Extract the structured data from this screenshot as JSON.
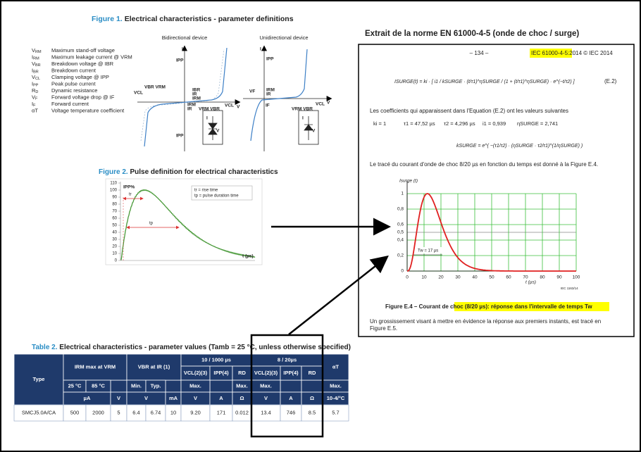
{
  "figure1": {
    "title_label": "Figure 1.",
    "title_text": "Electrical characteristics - parameter definitions",
    "parameters": [
      {
        "symbol": "V",
        "sub": "RM",
        "description": "Maximum stand-off voltage"
      },
      {
        "symbol": "I",
        "sub": "RM",
        "description": "Maximum leakage current @ VRM"
      },
      {
        "symbol": "V",
        "sub": "BR",
        "description": "Breakdown voltage @ IBR"
      },
      {
        "symbol": "I",
        "sub": "BR",
        "description": "Breakdown current"
      },
      {
        "symbol": "V",
        "sub": "CL",
        "description": "Clamping voltage @ IPP"
      },
      {
        "symbol": "I",
        "sub": "PP",
        "description": "Peak pulse current"
      },
      {
        "symbol": "R",
        "sub": "D",
        "description": "Dynamic resistance"
      },
      {
        "symbol": "V",
        "sub": "F",
        "description": "Forward voltage drop @ IF"
      },
      {
        "symbol": "I",
        "sub": "F",
        "description": "Forward current"
      },
      {
        "symbol": "αT",
        "sub": "",
        "description": "Voltage temperature coefficient"
      }
    ],
    "bidirectional": {
      "title": "Bidirectional device",
      "labels": [
        "I",
        "IPP",
        "VCL",
        "VBR VRM",
        "IBR",
        "IR",
        "IRM",
        "IRM",
        "IR",
        "VRM VBR",
        "VCL",
        "IPP",
        "V",
        "I",
        "V"
      ]
    },
    "unidirectional": {
      "title": "Unidirectional device",
      "labels": [
        "I",
        "IPP",
        "VF",
        "IRM",
        "IR",
        "IF",
        "VRM VBR",
        "VCL",
        "V",
        "I",
        "V"
      ]
    }
  },
  "figure2": {
    "title_label": "Figure 2.",
    "title_text": "Pulse definition for electrical characteristics",
    "y_label": "IPP%",
    "yticks": [
      "0",
      "10",
      "20",
      "30",
      "40",
      "50",
      "60",
      "70",
      "80",
      "90",
      "100",
      "110"
    ],
    "legend": [
      "tr = rise time",
      "tp = pulse duration time"
    ],
    "tr_label": "tr",
    "tp_label": "tp",
    "x_label": "t (µs)"
  },
  "standard": {
    "header": "Extrait de la norme EN 61000-4-5 (onde de choc / surge)",
    "page_number": "– 134 –",
    "ref_highlight": "IEC 61000-4-5:",
    "ref_rest": "2014 © IEC 2014",
    "equation": "ISURGE(t) = ki · [ i1 / kSURGE · (t/τ1)^ηSURGE / (1 + (t/τ1)^ηSURGE) · e^(−t/τ2) ]",
    "equation_number": "(E.2)",
    "paragraph1": "Les coefficients qui apparaissent dans l'Equation (E.2) ont les valeurs suivantes",
    "coefficients": [
      "ki = 1",
      "τ1 = 47,52 µs",
      "τ2 = 4,296 µs",
      "i1 = 0,939",
      "ηSURGE = 2,741"
    ],
    "k_equation": "kSURGE = e^( −(τ1/τ2) · (ηSURGE · τ2/τ1)^(1/ηSURGE) )",
    "paragraph2": "Le tracé du courant d'onde de choc 8/20 µs en fonction du temps est donné à la Figure E.4.",
    "chart": {
      "y_label": "Isurge (t)",
      "yticks": [
        "0",
        "0,2",
        "0,4",
        "0,5",
        "0,6",
        "0,8",
        "1"
      ],
      "xticks": [
        "0",
        "10",
        "20",
        "30",
        "40",
        "50",
        "60",
        "70",
        "80",
        "90",
        "100"
      ],
      "x_label": "t (µs)",
      "tw_label": "Tw = 17 µs",
      "source": "IEC 1163/14"
    },
    "caption_prefix": "Figure E.4 –",
    "caption_highlight": "Courant de choc (8/20 µs): réponse dans l'intervalle de temps Tw",
    "paragraph3": [
      "Un grossissement visant à mettre en évidence la réponse aux premiers instants, est tracé en",
      "Figure E.5."
    ]
  },
  "table": {
    "title_label": "Table 2.",
    "title_text": "Electrical characteristics - parameter values (Tamb = 25 °C, unless otherwise specified)",
    "header": [
      "Type",
      "IRM max at VRM",
      "VBR at IR (1)",
      "10 / 1000 µs",
      "8 / 20µs",
      "αT",
      "VCL(2)(3)",
      "IPP(4)",
      "RD",
      "VCL(2)(3)",
      "IPP(4)",
      "RD",
      "25 °C",
      "85 °C",
      "Min.",
      "Typ.",
      "Max.",
      "Max.",
      "Max.",
      "Max.",
      "µA",
      "V",
      "V",
      "mA",
      "V",
      "A",
      "Ω",
      "V",
      "A",
      "Ω",
      "10-4/°C"
    ],
    "rows": [
      [
        "SMCJ5.0A/CA",
        "500",
        "2000",
        "5",
        "6.4",
        "6.74",
        "10",
        "9.20",
        "171",
        "0.012",
        "13.4",
        "746",
        "8.5",
        "5.7"
      ]
    ]
  }
}
